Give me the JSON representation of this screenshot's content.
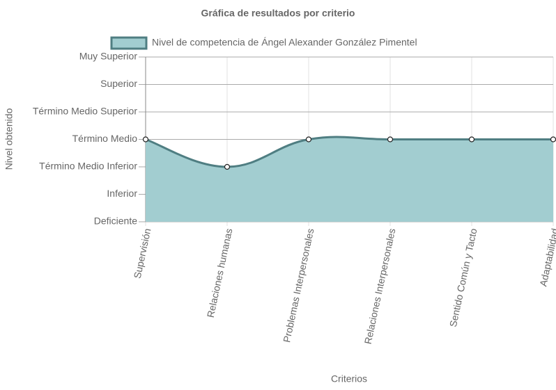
{
  "chart_data": {
    "type": "area",
    "title": "Gráfica de resultados por criterio",
    "x_label": "Criterios",
    "y_label": "Nivel obtenido",
    "categories": [
      "Supervisión",
      "Relaciones humanas",
      "Problemas Interpersonales",
      "Relaciones Interpersonales",
      "Sentido Común y Tacto",
      "Adaptabilidad"
    ],
    "series": [
      {
        "name": "Nivel de competencia de Ángel Alexander González Pimentel",
        "color": "#4f7e82",
        "fill": "#a2cdd0",
        "values": [
          4,
          3,
          4,
          4,
          4,
          4
        ]
      }
    ],
    "ylim": [
      1,
      7
    ],
    "yticks": [
      {
        "value": 1,
        "label": "Deficiente"
      },
      {
        "value": 2,
        "label": "Inferior"
      },
      {
        "value": 3,
        "label": "Término Medio Inferior"
      },
      {
        "value": 4,
        "label": "Término Medio"
      },
      {
        "value": 5,
        "label": "Término Medio Superior"
      },
      {
        "value": 6,
        "label": "Superior"
      },
      {
        "value": 7,
        "label": "Muy Superior"
      }
    ],
    "grid": true,
    "legend": "top"
  }
}
